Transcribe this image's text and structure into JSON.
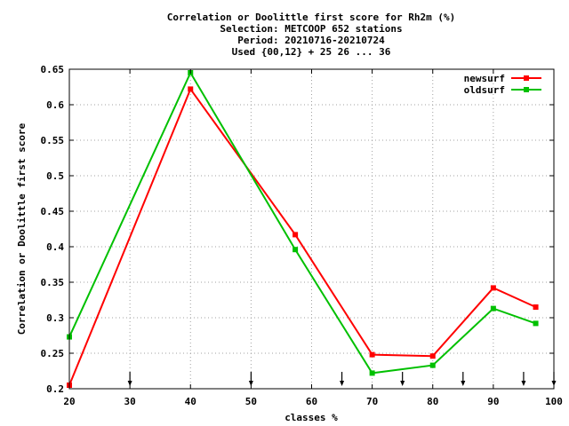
{
  "chart_data": {
    "type": "line",
    "title_lines": [
      "Correlation or Doolittle first score  for Rh2m (%)",
      "Selection: METCOOP    652 stations",
      "Period: 20210716-20210724",
      "Used {00,12} + 25 26 ... 36"
    ],
    "xlabel": "classes %",
    "ylabel": "Correlation or Doolittle first score",
    "xlim": [
      20,
      100
    ],
    "ylim": [
      0.2,
      0.65
    ],
    "xticks": [
      20,
      30,
      40,
      50,
      60,
      70,
      80,
      90,
      100
    ],
    "yticks": [
      0.2,
      0.25,
      0.3,
      0.35,
      0.4,
      0.45,
      0.5,
      0.55,
      0.6,
      0.65
    ],
    "xtick_labels": [
      "20",
      "30",
      "40",
      "50",
      "60",
      "70",
      "80",
      "90",
      "100"
    ],
    "ytick_labels": [
      "0.2",
      "0.25",
      "0.3",
      "0.35",
      "0.4",
      "0.45",
      "0.5",
      "0.55",
      "0.6",
      "0.65"
    ],
    "grid": true,
    "legend_position": "top-right",
    "class_limits": [
      30,
      50,
      65,
      75,
      85,
      95,
      100
    ],
    "series": [
      {
        "name": "newsurf",
        "color": "#ff0000",
        "x": [
          20,
          40,
          57.3,
          70,
          80,
          90,
          97
        ],
        "y": [
          0.205,
          0.622,
          0.417,
          0.248,
          0.246,
          0.342,
          0.315
        ]
      },
      {
        "name": "oldsurf",
        "color": "#00c000",
        "x": [
          20,
          40,
          57.3,
          70,
          80,
          90,
          97
        ],
        "y": [
          0.273,
          0.645,
          0.396,
          0.222,
          0.233,
          0.313,
          0.292
        ]
      }
    ]
  }
}
